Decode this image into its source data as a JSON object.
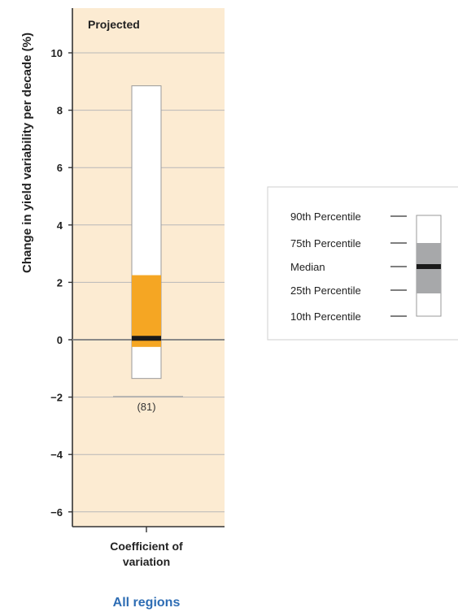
{
  "chart_data": {
    "type": "box",
    "panel_label": "Projected",
    "ylabel": "Change in yield variability per decade (%)",
    "ylim": [
      -6.5,
      11.5
    ],
    "yticks": [
      -6,
      -4,
      -2,
      0,
      2,
      4,
      6,
      8,
      10
    ],
    "ytick_labels": [
      "−6",
      "−4",
      "−2",
      "0",
      "2",
      "4",
      "6",
      "8",
      "10"
    ],
    "category": "Coefficient of variation",
    "category_lines": [
      "Coefficient of",
      "variation"
    ],
    "group_label": "All regions",
    "box": {
      "p10": -1.35,
      "p25": -0.25,
      "median": 0.05,
      "p75": 2.25,
      "p90": 8.85,
      "n_label": "(81)"
    },
    "legend": {
      "items": [
        "90th  Percentile",
        "75th  Percentile",
        "Median",
        "25th  Percentile",
        "10th  Percentile"
      ]
    },
    "colors": {
      "panel_bg": "#fcebd2",
      "box_fill": "#f5a623",
      "median": "#1a1a1a",
      "legend_box": "#a7a8aa",
      "group_label": "#2e6db4",
      "gridline": "#b8b8b8"
    }
  }
}
